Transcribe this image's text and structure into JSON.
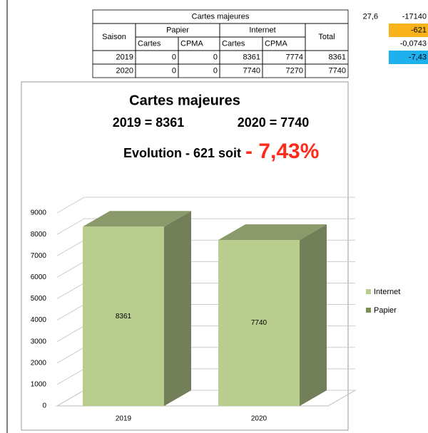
{
  "table": {
    "title": "Cartes majeures",
    "head": [
      "Saison",
      "Papier",
      "Internet",
      "Total"
    ],
    "subhead": [
      "Cartes",
      "CPMA",
      "Cartes",
      "CPMA"
    ],
    "rows": [
      [
        "2019",
        0,
        0,
        8361,
        7774,
        8361
      ],
      [
        "2020",
        0,
        0,
        7740,
        7270,
        7740
      ]
    ]
  },
  "side_cells": [
    "27,6",
    "-17140",
    "-621",
    "-0,0743",
    "-7,43"
  ],
  "chart_data": {
    "type": "bar",
    "stacked": true,
    "title": "Cartes majeures",
    "subtitle_left": "2019 = 8361",
    "subtitle_right": "2020 = 7740",
    "annotation": "Evolution - 621 soit",
    "annotation_highlight": "- 7,43%",
    "annotation_highlight_color": "#ff2a1a",
    "categories": [
      "2019",
      "2020"
    ],
    "series": [
      {
        "name": "Internet",
        "color": "#b9cd8f",
        "values": [
          8361,
          7740
        ]
      },
      {
        "name": "Papier",
        "color": "#7d8f58",
        "values": [
          0,
          0
        ]
      }
    ],
    "ylim": [
      0,
      9000
    ],
    "yticks": [
      0,
      1000,
      2000,
      3000,
      4000,
      5000,
      6000,
      7000,
      8000,
      9000
    ],
    "grid": true,
    "legend": "right"
  }
}
